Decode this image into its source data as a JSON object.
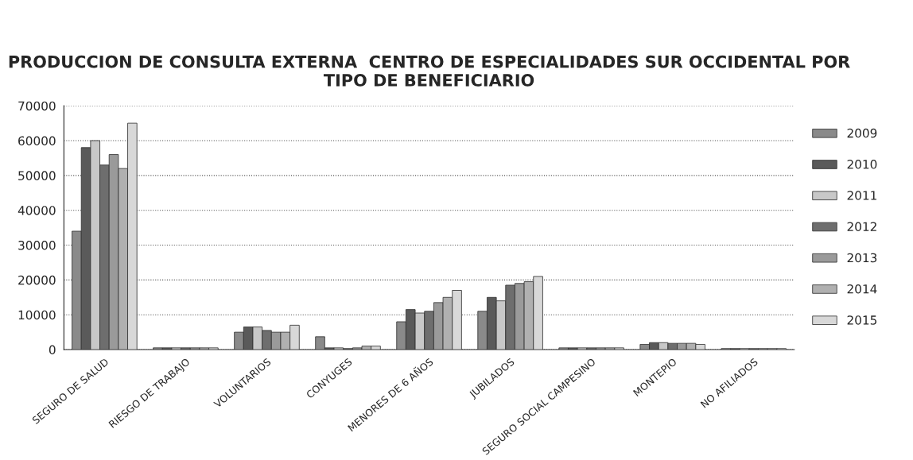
{
  "chart_data": {
    "type": "bar",
    "title": "PRODUCCION DE CONSULTA EXTERNA  CENTRO DE ESPECIALIDADES SUR OCCIDENTAL POR TIPO DE BENEFICIARIO",
    "categories": [
      "SEGURO DE SALUD",
      "RIESGO DE TRABAJO",
      "VOLUNTARIOS",
      "CONYUGES",
      "MENORES DE 6 AÑOS",
      "JUBILADOS",
      "SEGURO SOCIAL CAMPESINO",
      "MONTEPIO",
      "NO AFILIADOS"
    ],
    "series": [
      {
        "name": "2009",
        "color": "#8a8a8a",
        "values": [
          34000,
          500,
          5000,
          3700,
          8000,
          11000,
          500,
          1500,
          300
        ]
      },
      {
        "name": "2010",
        "color": "#5a5a5a",
        "values": [
          58000,
          500,
          6500,
          500,
          11500,
          15000,
          500,
          2000,
          300
        ]
      },
      {
        "name": "2011",
        "color": "#c8c8c8",
        "values": [
          60000,
          500,
          6500,
          500,
          10500,
          14000,
          500,
          2000,
          300
        ]
      },
      {
        "name": "2012",
        "color": "#6e6e6e",
        "values": [
          53000,
          500,
          5500,
          300,
          11000,
          18500,
          500,
          1800,
          300
        ]
      },
      {
        "name": "2013",
        "color": "#9a9a9a",
        "values": [
          56000,
          500,
          5000,
          500,
          13500,
          19000,
          500,
          1800,
          300
        ]
      },
      {
        "name": "2014",
        "color": "#b0b0b0",
        "values": [
          52000,
          500,
          5000,
          1000,
          15000,
          19500,
          500,
          1800,
          300
        ]
      },
      {
        "name": "2015",
        "color": "#d8d8d8",
        "values": [
          65000,
          500,
          7000,
          1000,
          17000,
          21000,
          500,
          1500,
          300
        ]
      }
    ],
    "ylim": [
      0,
      70000
    ],
    "yticks": [
      0,
      10000,
      20000,
      30000,
      40000,
      50000,
      60000,
      70000
    ],
    "grid": "y",
    "legend": "right"
  }
}
